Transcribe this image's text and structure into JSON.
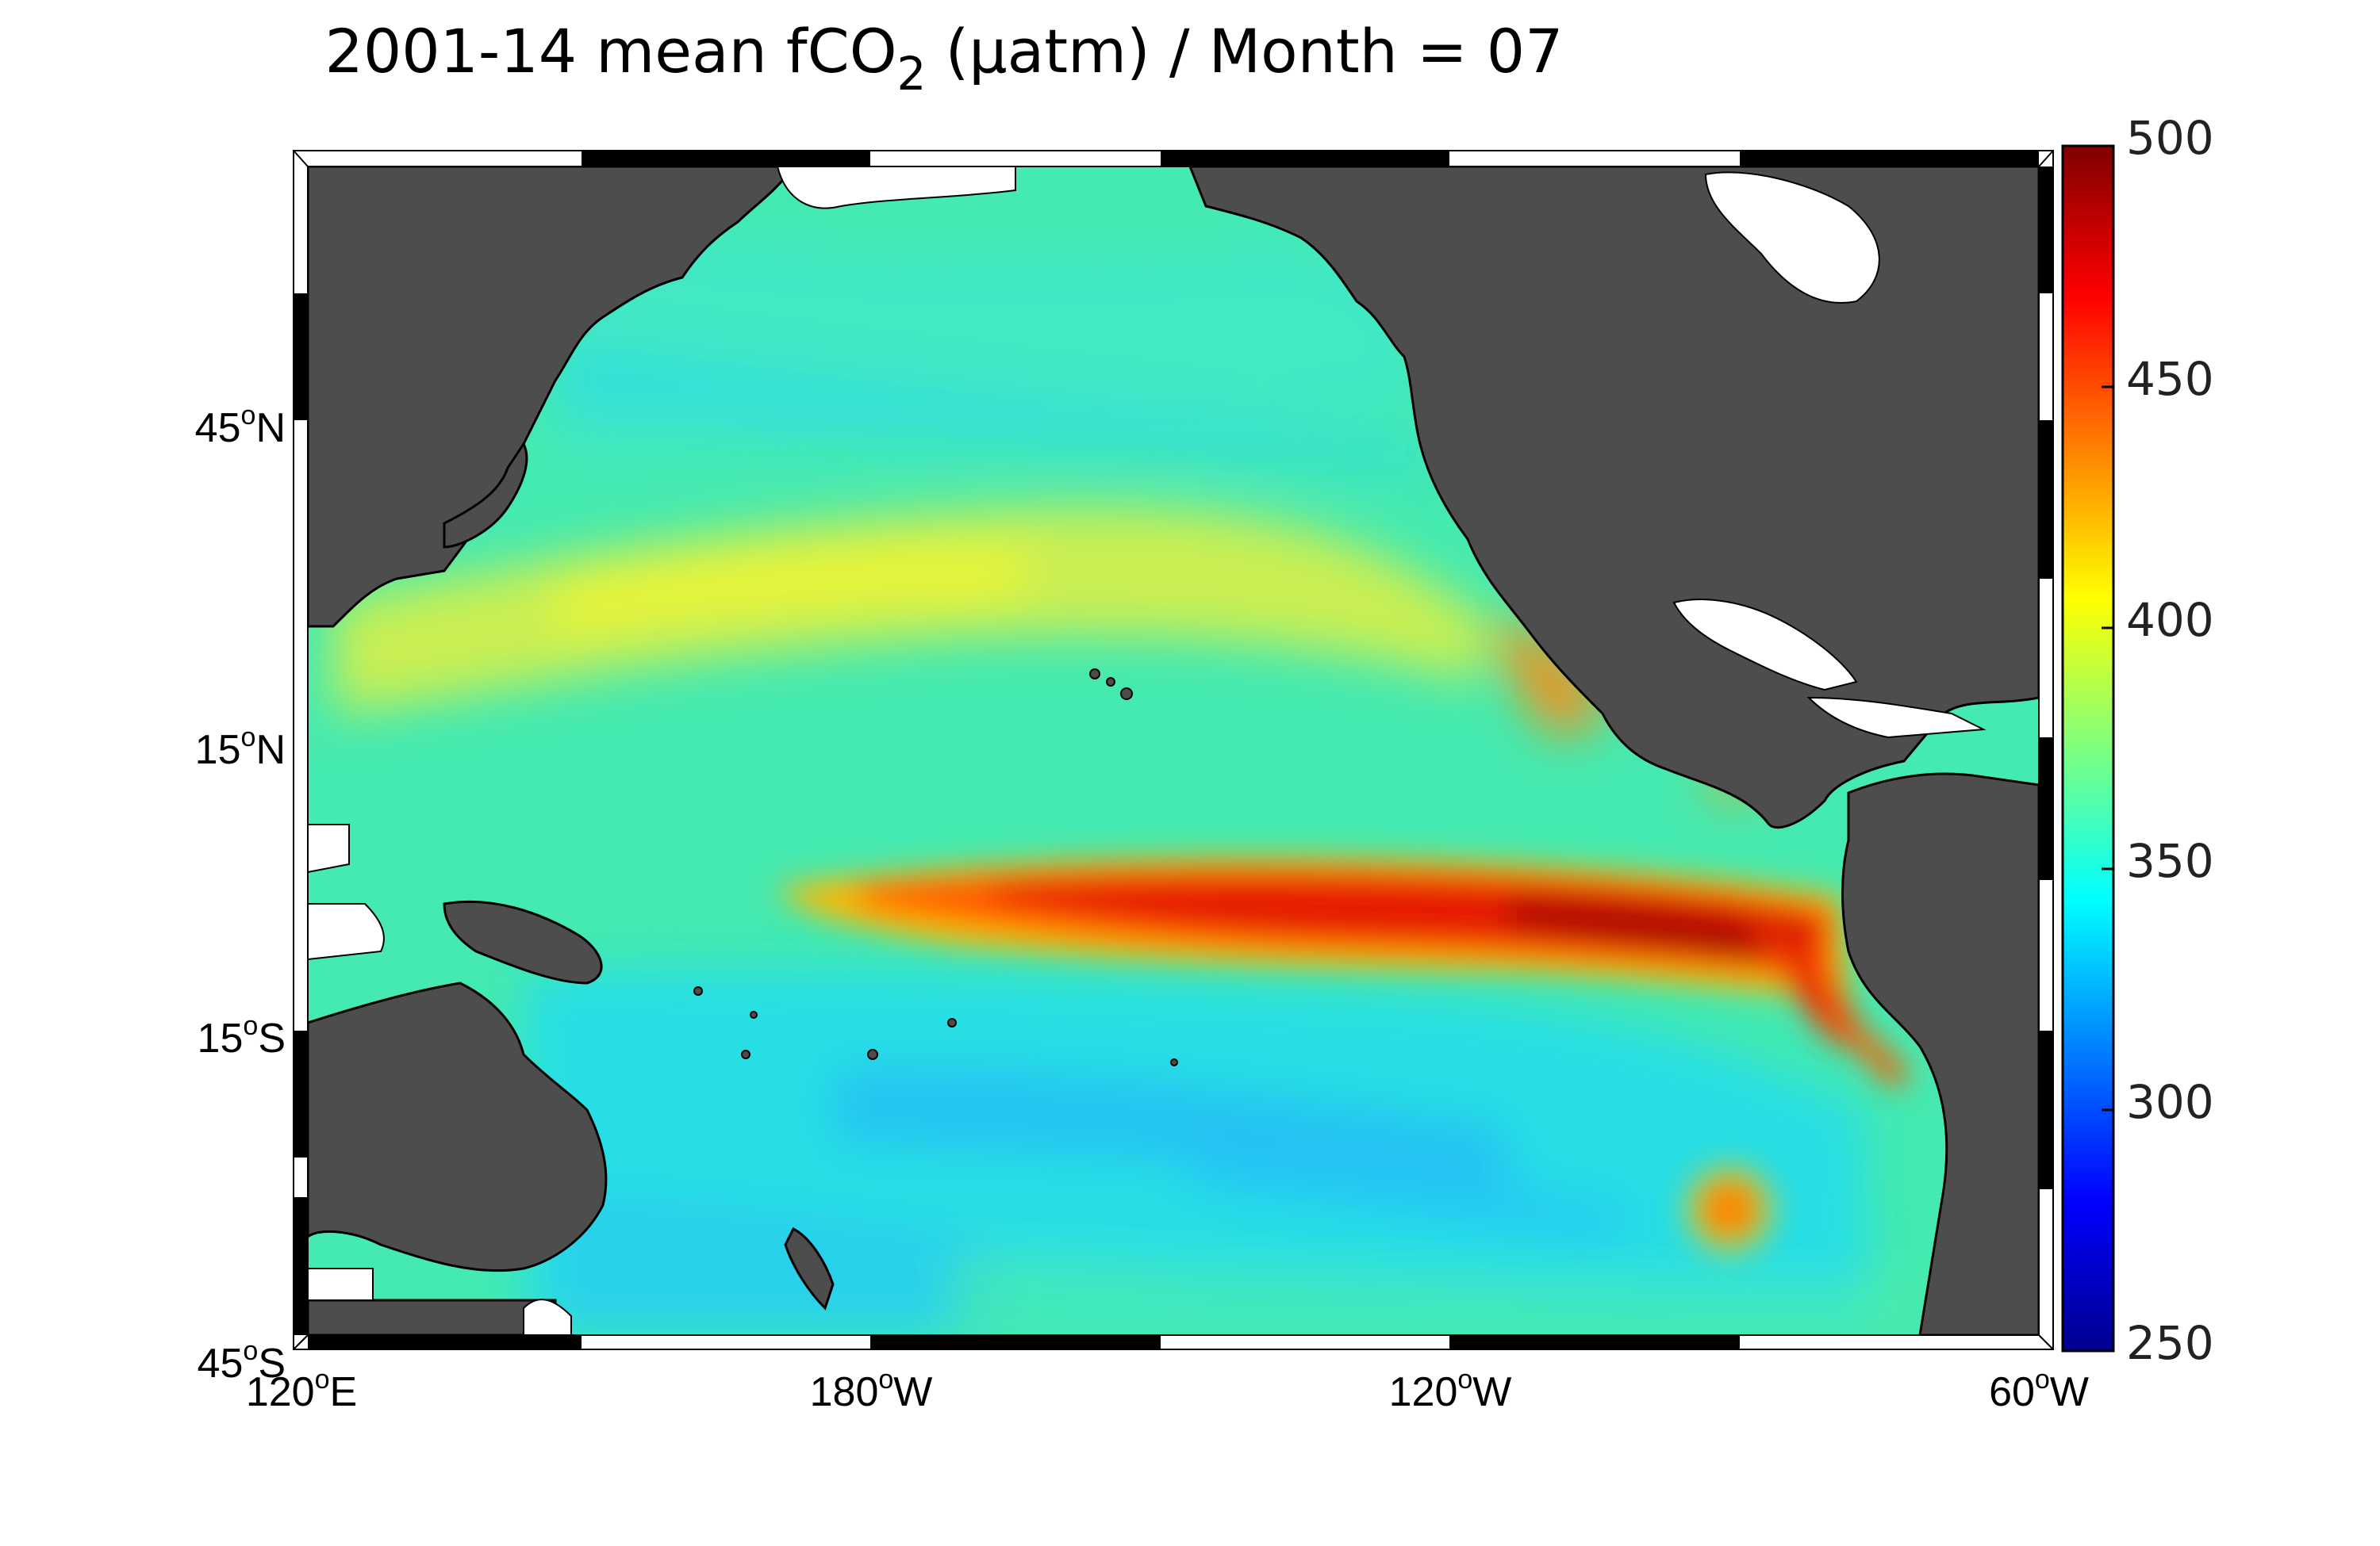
{
  "title": {
    "prefix": "2001-14 mean fCO",
    "subscript": "2",
    "suffix": " (µatm) / Month = 07"
  },
  "map": {
    "projection": "equirectangular",
    "lon_range_east": [
      120,
      300
    ],
    "lat_range": [
      -45,
      70
    ],
    "land_color": "#4d4d4d",
    "nodata_color": "#ffffff",
    "variable": "fCO2",
    "units": "µatm",
    "month": "07",
    "period": "2001-14"
  },
  "lat_labels": [
    {
      "deg": "45",
      "hemi": "N",
      "value": 45
    },
    {
      "deg": "15",
      "hemi": "N",
      "value": 15
    },
    {
      "deg": "15",
      "hemi": "S",
      "value": -15
    },
    {
      "deg": "45",
      "hemi": "S",
      "value": -45
    }
  ],
  "lon_labels": [
    {
      "deg": "120",
      "hemi": "E",
      "value": 120
    },
    {
      "deg": "180",
      "hemi": "W",
      "value": 180
    },
    {
      "deg": "120",
      "hemi": "W",
      "value": 240
    },
    {
      "deg": "60",
      "hemi": "W",
      "value": 300
    }
  ],
  "colorbar": {
    "min": 250,
    "max": 500,
    "ticks": [
      "500",
      "450",
      "400",
      "350",
      "300",
      "250"
    ],
    "colormap": "jet",
    "colors": [
      "#00008f",
      "#0000ff",
      "#00ffff",
      "#7fff7f",
      "#ffff00",
      "#ff0000",
      "#800000"
    ]
  }
}
